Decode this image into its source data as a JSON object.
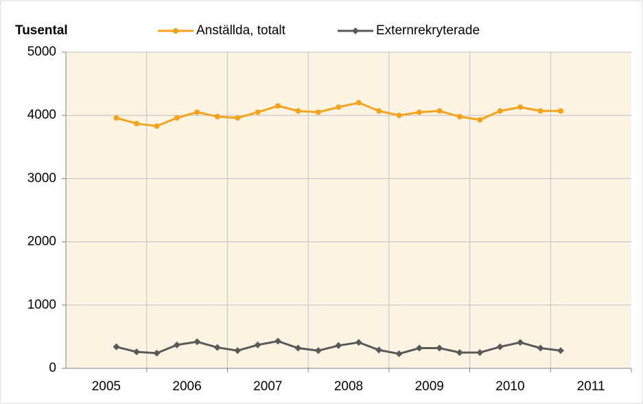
{
  "chart_data": {
    "type": "line",
    "y_axis_label": "Tusental",
    "x": [
      2005.125,
      2005.375,
      2005.625,
      2005.875,
      2006.125,
      2006.375,
      2006.625,
      2006.875,
      2007.125,
      2007.375,
      2007.625,
      2007.875,
      2008.125,
      2008.375,
      2008.625,
      2008.875,
      2009.125,
      2009.375,
      2009.625,
      2009.875,
      2010.125,
      2010.375,
      2010.625
    ],
    "series": [
      {
        "name": "Anställda, totalt",
        "color": "#f5a31c",
        "marker": "circle",
        "values": [
          3960,
          3870,
          3830,
          3960,
          4050,
          3980,
          3960,
          4050,
          4150,
          4070,
          4050,
          4130,
          4200,
          4070,
          4000,
          4050,
          4070,
          3980,
          3930,
          4070,
          4130,
          4070,
          4070
        ]
      },
      {
        "name": "Externrekryterade",
        "color": "#595959",
        "marker": "diamond",
        "values": [
          340,
          260,
          240,
          370,
          420,
          330,
          280,
          370,
          430,
          320,
          280,
          360,
          410,
          290,
          230,
          320,
          320,
          250,
          250,
          340,
          410,
          320,
          280
        ]
      }
    ],
    "xlim": [
      2004.5,
      2011.5
    ],
    "xticks": [
      2005,
      2006,
      2007,
      2008,
      2009,
      2010,
      2011
    ],
    "ylim": [
      0,
      5000
    ],
    "yticks": [
      0,
      1000,
      2000,
      3000,
      4000,
      5000
    ],
    "grid": true
  }
}
